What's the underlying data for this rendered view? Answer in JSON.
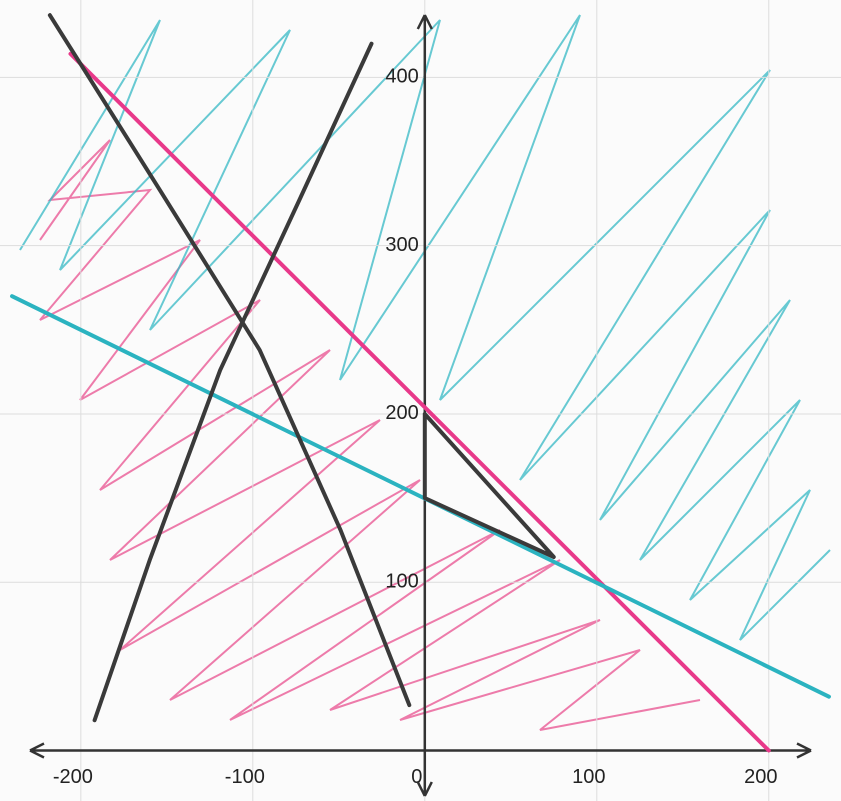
{
  "chart_data": {
    "type": "line",
    "xlim": [
      -247,
      242
    ],
    "ylim": [
      -30,
      446
    ],
    "xticks": [
      -200,
      -100,
      0,
      100,
      200
    ],
    "yticks": [
      100,
      200,
      300,
      400
    ],
    "grid": true,
    "series": [
      {
        "color": "#e8398a",
        "x": [
          -206,
          200
        ],
        "values": [
          414,
          0
        ]
      },
      {
        "color": "#2bb3c0",
        "x": [
          -240,
          235
        ],
        "values": [
          270,
          32
        ]
      },
      {
        "color": "#3a3a3a",
        "x": [
          -218,
          -154,
          -96,
          -49,
          -9
        ],
        "values": [
          437,
          333,
          238,
          131,
          27
        ]
      },
      {
        "color": "#3a3a3a",
        "x": [
          -192,
          -160,
          -119,
          -73,
          -31
        ],
        "values": [
          18,
          113,
          226,
          327,
          420
        ]
      },
      {
        "color": "#3a3a3a",
        "x": [
          0,
          0,
          75,
          0
        ],
        "values": [
          200,
          150,
          115,
          200
        ]
      }
    ]
  }
}
